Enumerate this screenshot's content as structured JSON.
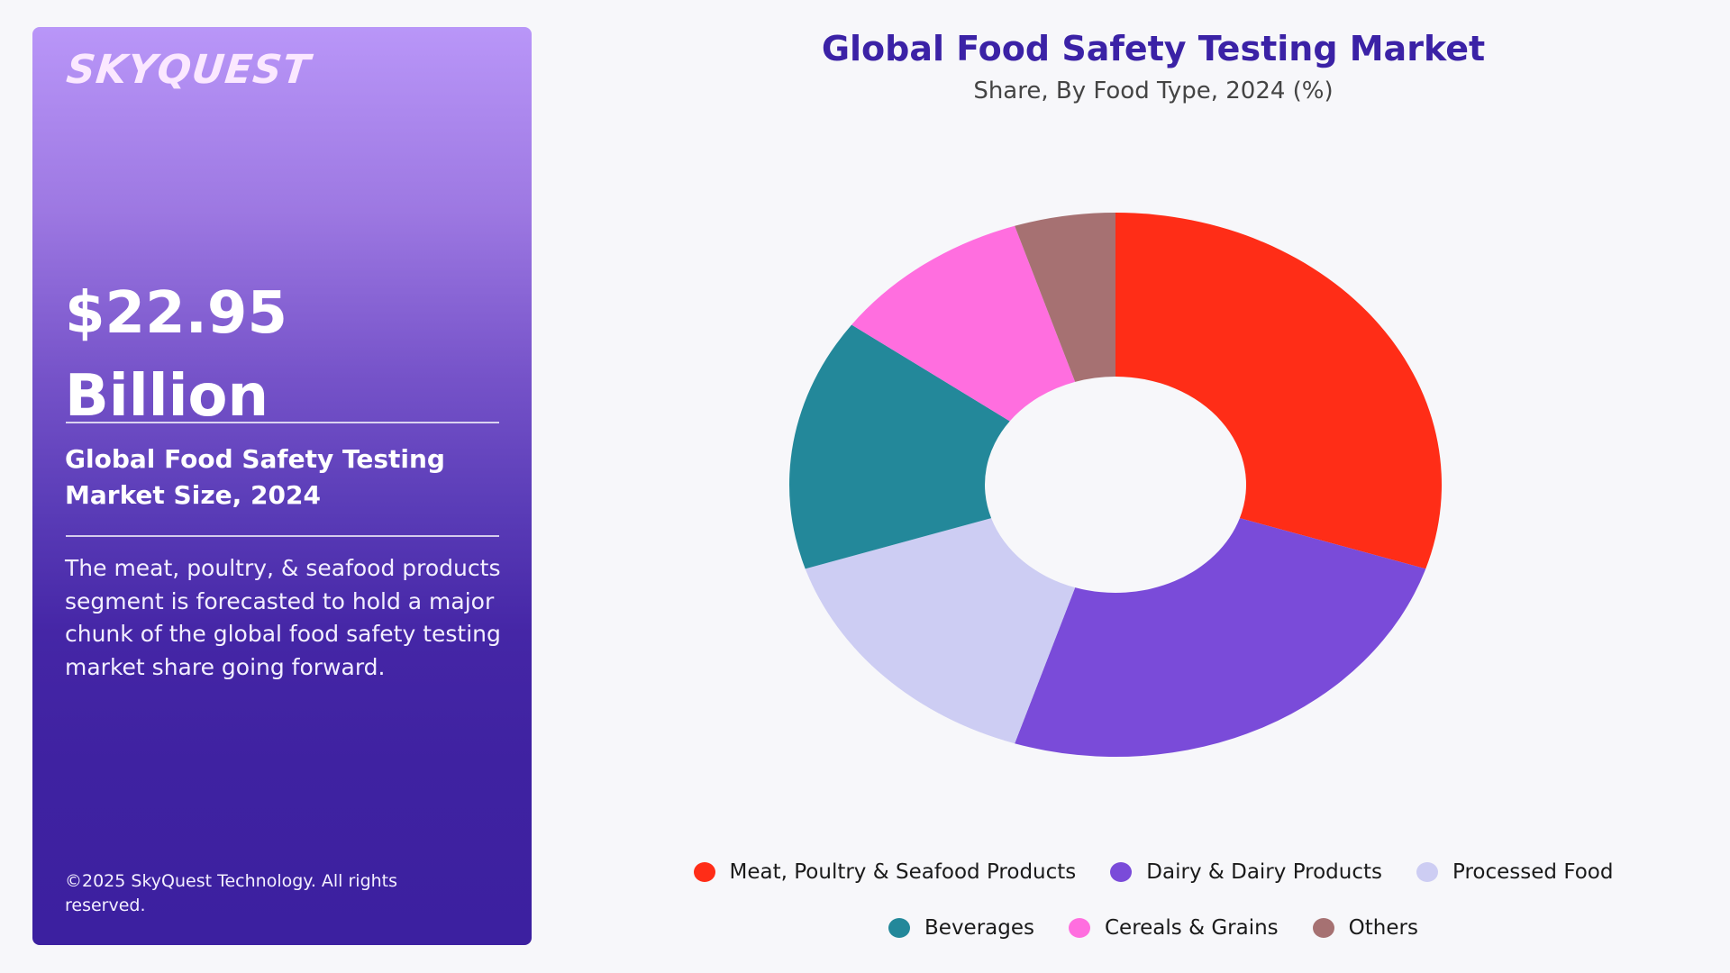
{
  "panel": {
    "logo": "SKYQUEST",
    "value_line1": "$22.95",
    "value_line2": "Billion",
    "size_heading": "Global Food Safety Testing Market Size, 2024",
    "description": "The meat, poultry, & seafood products segment is forecasted to hold a major chunk of the global food safety testing market share going forward.",
    "copyright": "©2025 SkyQuest Technology. All rights reserved.",
    "gradient_top": "#b996f8",
    "gradient_bottom": "#3c20a0"
  },
  "colors": {
    "title": "#3b22a6",
    "subtitle": "#444444",
    "background": "#f7f7fa"
  },
  "chart_data": {
    "type": "pie",
    "variant": "donut",
    "title": "Global Food Safety Testing Market",
    "subtitle": "Share, By Food Type, 2024 (%)",
    "categories": [
      "Meat, Poultry & Seafood Products",
      "Dairy & Dairy Products",
      "Processed Food",
      "Beverages",
      "Cereals & Grains",
      "Others"
    ],
    "values": [
      30,
      25,
      15,
      15,
      10,
      5
    ],
    "colors": [
      "#ff2d17",
      "#7a4bd9",
      "#cdcdf3",
      "#23889a",
      "#ff6edf",
      "#a67172"
    ],
    "start_angle_deg": 0,
    "direction": "clockwise",
    "legend_position": "bottom",
    "data_labels": false
  },
  "legend": {
    "items": [
      {
        "label": "Meat, Poultry & Seafood Products",
        "color": "#ff2d17"
      },
      {
        "label": "Dairy & Dairy Products",
        "color": "#7a4bd9"
      },
      {
        "label": "Processed Food",
        "color": "#cdcdf3"
      },
      {
        "label": "Beverages",
        "color": "#23889a"
      },
      {
        "label": "Cereals & Grains",
        "color": "#ff6edf"
      },
      {
        "label": "Others",
        "color": "#a67172"
      }
    ]
  }
}
